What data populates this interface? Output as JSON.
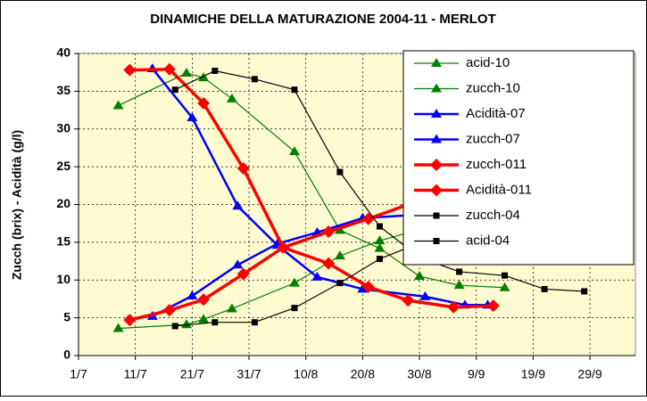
{
  "chart_data": {
    "type": "line",
    "title": "DINAMICHE DELLA MATURAZIONE  2004-11   - MERLOT",
    "y_label": "Zucch (brix) - Acidità (g/l)",
    "xlim": [
      "1/7",
      "7/10"
    ],
    "xticks": [
      "1/7",
      "11/7",
      "21/7",
      "31/7",
      "10/8",
      "20/8",
      "30/8",
      "9/9",
      "19/9",
      "29/9"
    ],
    "ylim": [
      0,
      40
    ],
    "yticks": [
      0,
      5,
      10,
      15,
      20,
      25,
      30,
      35,
      40
    ],
    "grid": true,
    "legend": "upper right",
    "series": [
      {
        "name": "acid-10",
        "color": "#008000",
        "marker": "triangle",
        "x": [
          "8/7",
          "20/7",
          "23/7",
          "28/7",
          "8/8",
          "16/8",
          "23/8",
          "30/8",
          "6/9",
          "14/9"
        ],
        "values": [
          33.1,
          37.4,
          36.8,
          34.0,
          27.0,
          16.6,
          14.2,
          10.5,
          9.3,
          9.0
        ]
      },
      {
        "name": "zucch-10",
        "color": "#008000",
        "marker": "triangle",
        "x": [
          "8/7",
          "20/7",
          "23/7",
          "28/7",
          "8/8",
          "16/8",
          "23/8",
          "30/8",
          "6/9",
          "14/9"
        ],
        "values": [
          3.6,
          4.1,
          4.8,
          6.2,
          9.6,
          13.2,
          15.2,
          16.7,
          18.8,
          19.0
        ]
      },
      {
        "name": "Acidità-07",
        "color": "#0000ff",
        "marker": "triangle",
        "x": [
          "14/7",
          "21/7",
          "29/7",
          "5/8",
          "12/8",
          "20/8",
          "31/8",
          "7/9",
          "11/9"
        ],
        "values": [
          38.0,
          31.5,
          19.8,
          14.6,
          10.4,
          8.8,
          7.8,
          6.7,
          6.7
        ]
      },
      {
        "name": "zucch-07",
        "color": "#0000ff",
        "marker": "triangle",
        "x": [
          "14/7",
          "21/7",
          "29/7",
          "5/8",
          "12/8",
          "20/8",
          "31/8",
          "7/9",
          "11/9"
        ],
        "values": [
          5.2,
          7.9,
          12.0,
          14.8,
          16.3,
          18.2,
          18.7,
          19.4,
          20.0
        ]
      },
      {
        "name": "zucch-011",
        "color": "#ff0000",
        "marker": "diamond",
        "x": [
          "10/7",
          "17/7",
          "23/7",
          "30/7",
          "6/8",
          "14/8",
          "21/8",
          "28/8",
          "5/9",
          "12/9"
        ],
        "values": [
          4.7,
          6.0,
          7.4,
          10.8,
          14.3,
          16.4,
          18.1,
          20.0,
          20.3,
          20.2
        ]
      },
      {
        "name": "Acidità-011",
        "color": "#ff0000",
        "marker": "diamond",
        "x": [
          "10/7",
          "17/7",
          "23/7",
          "30/7",
          "6/8",
          "14/8",
          "21/8",
          "28/8",
          "5/9",
          "12/9"
        ],
        "values": [
          37.8,
          37.9,
          33.4,
          24.8,
          14.3,
          12.2,
          9.1,
          7.3,
          6.4,
          6.6
        ]
      },
      {
        "name": "zucch-04",
        "color": "#000000",
        "marker": "square",
        "x": [
          "18/7",
          "25/7",
          "1/8",
          "8/8",
          "16/8",
          "23/8",
          "30/8",
          "6/9",
          "14/9",
          "21/9",
          "28/9"
        ],
        "values": [
          3.9,
          4.4,
          4.4,
          6.3,
          9.6,
          12.8,
          14.9,
          16.5,
          18.2,
          18.7,
          19.5
        ]
      },
      {
        "name": "acid-04",
        "color": "#000000",
        "marker": "square",
        "x": [
          "18/7",
          "25/7",
          "1/8",
          "8/8",
          "16/8",
          "23/8",
          "30/8",
          "6/9",
          "14/9",
          "21/9",
          "28/9"
        ],
        "values": [
          35.2,
          37.7,
          36.6,
          35.2,
          24.3,
          17.1,
          13.0,
          11.1,
          10.6,
          8.8,
          8.5
        ]
      }
    ]
  }
}
